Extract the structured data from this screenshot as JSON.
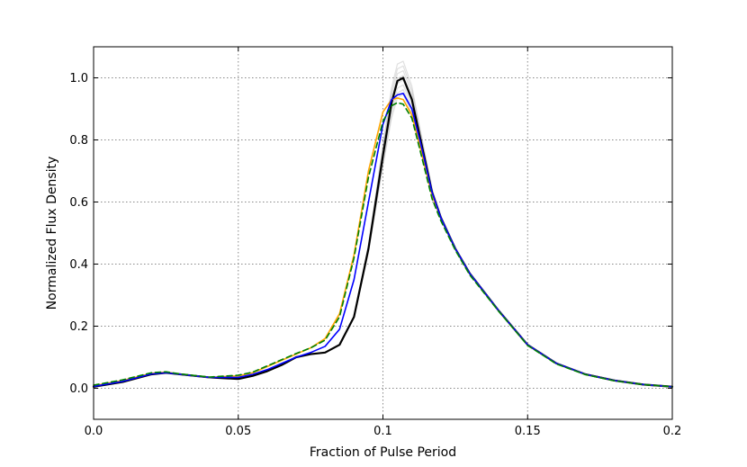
{
  "chart_data": {
    "type": "line",
    "title": "",
    "xlabel": "Fraction of Pulse Period",
    "ylabel": "Normalized Flux Density",
    "xlim": [
      0.0,
      0.2
    ],
    "ylim": [
      -0.1,
      1.1
    ],
    "grid": true,
    "grid_style": "dotted",
    "xticks": [
      0.0,
      0.05,
      0.1,
      0.15,
      0.2
    ],
    "xtick_labels": [
      "0.0",
      "0.05",
      "0.1",
      "0.15",
      "0.2"
    ],
    "yticks": [
      0.0,
      0.2,
      0.4,
      0.6,
      0.8,
      1.0
    ],
    "ytick_labels": [
      "0.0",
      "0.2",
      "0.4",
      "0.6",
      "0.8",
      "1.0"
    ],
    "gray_band": {
      "color": "#000000",
      "count": 8,
      "peak_spread": [
        0.945,
        1.055
      ]
    },
    "series": [
      {
        "style": "solid",
        "color": "#000000",
        "width": 2.2,
        "x": [
          0.0,
          0.01,
          0.02,
          0.025,
          0.03,
          0.04,
          0.05,
          0.055,
          0.06,
          0.065,
          0.07,
          0.075,
          0.08,
          0.085,
          0.09,
          0.095,
          0.1,
          0.103,
          0.105,
          0.107,
          0.11,
          0.113,
          0.117,
          0.12,
          0.125,
          0.13,
          0.14,
          0.15,
          0.16,
          0.17,
          0.18,
          0.19,
          0.2
        ],
        "values": [
          0.005,
          0.02,
          0.045,
          0.05,
          0.045,
          0.035,
          0.03,
          0.04,
          0.055,
          0.075,
          0.1,
          0.11,
          0.115,
          0.14,
          0.23,
          0.45,
          0.75,
          0.92,
          0.99,
          1.0,
          0.93,
          0.8,
          0.63,
          0.55,
          0.45,
          0.37,
          0.25,
          0.14,
          0.08,
          0.045,
          0.025,
          0.012,
          0.005
        ]
      },
      {
        "style": "solid",
        "color": "#ffa500",
        "width": 1.6,
        "x": [
          0.0,
          0.01,
          0.02,
          0.025,
          0.03,
          0.04,
          0.05,
          0.055,
          0.06,
          0.065,
          0.07,
          0.075,
          0.08,
          0.085,
          0.09,
          0.095,
          0.1,
          0.103,
          0.105,
          0.107,
          0.11,
          0.113,
          0.117,
          0.12,
          0.125,
          0.13,
          0.14,
          0.15,
          0.16,
          0.17,
          0.18,
          0.19,
          0.2
        ],
        "values": [
          0.008,
          0.025,
          0.048,
          0.052,
          0.045,
          0.035,
          0.04,
          0.05,
          0.07,
          0.09,
          0.11,
          0.13,
          0.16,
          0.24,
          0.43,
          0.7,
          0.89,
          0.93,
          0.935,
          0.93,
          0.88,
          0.77,
          0.62,
          0.55,
          0.45,
          0.37,
          0.25,
          0.14,
          0.08,
          0.045,
          0.025,
          0.012,
          0.005
        ]
      },
      {
        "style": "solid",
        "color": "#0000ff",
        "width": 1.6,
        "x": [
          0.0,
          0.01,
          0.02,
          0.025,
          0.03,
          0.04,
          0.05,
          0.055,
          0.06,
          0.065,
          0.07,
          0.075,
          0.08,
          0.085,
          0.09,
          0.095,
          0.1,
          0.103,
          0.105,
          0.107,
          0.11,
          0.113,
          0.117,
          0.12,
          0.125,
          0.13,
          0.14,
          0.15,
          0.16,
          0.17,
          0.18,
          0.19,
          0.2
        ],
        "values": [
          0.006,
          0.022,
          0.046,
          0.05,
          0.045,
          0.035,
          0.035,
          0.045,
          0.06,
          0.08,
          0.1,
          0.115,
          0.135,
          0.19,
          0.35,
          0.6,
          0.85,
          0.93,
          0.945,
          0.95,
          0.9,
          0.79,
          0.63,
          0.55,
          0.45,
          0.37,
          0.25,
          0.14,
          0.08,
          0.045,
          0.025,
          0.012,
          0.005
        ]
      },
      {
        "style": "dashed",
        "color": "#008000",
        "width": 1.6,
        "x": [
          0.0,
          0.01,
          0.02,
          0.025,
          0.03,
          0.04,
          0.05,
          0.055,
          0.06,
          0.065,
          0.07,
          0.075,
          0.08,
          0.085,
          0.09,
          0.095,
          0.1,
          0.103,
          0.105,
          0.107,
          0.11,
          0.113,
          0.117,
          0.12,
          0.125,
          0.13,
          0.14,
          0.15,
          0.16,
          0.17,
          0.18,
          0.19,
          0.2
        ],
        "values": [
          0.01,
          0.027,
          0.05,
          0.053,
          0.046,
          0.036,
          0.042,
          0.052,
          0.072,
          0.092,
          0.112,
          0.13,
          0.155,
          0.23,
          0.42,
          0.68,
          0.86,
          0.91,
          0.92,
          0.915,
          0.87,
          0.76,
          0.61,
          0.54,
          0.445,
          0.365,
          0.248,
          0.138,
          0.078,
          0.044,
          0.024,
          0.012,
          0.005
        ]
      }
    ]
  }
}
